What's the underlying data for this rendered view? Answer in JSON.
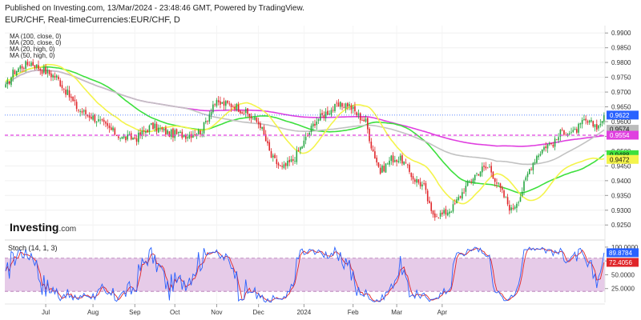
{
  "header": {
    "published": "Published on Investing.com, 13/Mar/2024 - 23:48:46 GMT, Powered by TradingView.",
    "symbol": "EUR/CHF, Real-timeCurrencies:EUR/CHF, D"
  },
  "legend": [
    {
      "label": "MA (100, close, 0)",
      "color": "#c2c2c2"
    },
    {
      "label": "MA (200, close, 0)",
      "color": "#e040e0"
    },
    {
      "label": "MA (20, high, 0)",
      "color": "#f4f44c"
    },
    {
      "label": "MA (50, high, 0)",
      "color": "#3ee03e"
    }
  ],
  "logo": {
    "text": "Investing",
    "suffix": ".com"
  },
  "stoch_label": "Stoch (14, 1, 3)",
  "colors": {
    "up": "#26a641",
    "down": "#e0262a",
    "bg": "#ffffff"
  },
  "chart_data": [
    {
      "type": "candlestick",
      "ylim": [
        0.921,
        0.9925
      ],
      "yticks": [
        "0.9900",
        "0.9850",
        "0.9800",
        "0.9750",
        "0.9700",
        "0.9650",
        "0.9600",
        "0.9550",
        "0.9500",
        "0.9450",
        "0.9400",
        "0.9350",
        "0.9300",
        "0.9250"
      ],
      "xticks": [
        "Jul",
        "Aug",
        "Sep",
        "Oct",
        "Nov",
        "Dec",
        "2024",
        "Feb",
        "Mar",
        "Apr"
      ],
      "price_labels": [
        {
          "value": "0.9622",
          "color": "#2962ff"
        },
        {
          "value": "0.9574",
          "color": "#bbbbbb"
        },
        {
          "value": "0.9554",
          "color": "#e040e0"
        },
        {
          "value": "0.9488",
          "color": "#3ee03e"
        },
        {
          "value": "0.9472",
          "color": "#f4f44c"
        }
      ],
      "close_waypoints": [
        [
          0,
          0.9715
        ],
        [
          4,
          0.9765
        ],
        [
          8,
          0.9785
        ],
        [
          14,
          0.98
        ],
        [
          20,
          0.9775
        ],
        [
          28,
          0.975
        ],
        [
          34,
          0.9695
        ],
        [
          40,
          0.964
        ],
        [
          48,
          0.9615
        ],
        [
          56,
          0.958
        ],
        [
          64,
          0.9545
        ],
        [
          72,
          0.9545
        ],
        [
          80,
          0.9585
        ],
        [
          90,
          0.956
        ],
        [
          100,
          0.9555
        ],
        [
          108,
          0.957
        ],
        [
          114,
          0.966
        ],
        [
          120,
          0.966
        ],
        [
          126,
          0.9655
        ],
        [
          134,
          0.962
        ],
        [
          140,
          0.959
        ],
        [
          146,
          0.948
        ],
        [
          152,
          0.944
        ],
        [
          158,
          0.947
        ],
        [
          164,
          0.953
        ],
        [
          170,
          0.96
        ],
        [
          176,
          0.963
        ],
        [
          182,
          0.965
        ],
        [
          188,
          0.966
        ],
        [
          194,
          0.962
        ],
        [
          198,
          0.96
        ],
        [
          201,
          0.952
        ],
        [
          206,
          0.943
        ],
        [
          212,
          0.9475
        ],
        [
          218,
          0.947
        ],
        [
          224,
          0.941
        ],
        [
          230,
          0.938
        ],
        [
          234,
          0.929
        ],
        [
          240,
          0.9285
        ],
        [
          246,
          0.931
        ],
        [
          252,
          0.937
        ],
        [
          258,
          0.942
        ],
        [
          262,
          0.944
        ],
        [
          266,
          0.9445
        ],
        [
          272,
          0.937
        ],
        [
          278,
          0.93
        ],
        [
          283,
          0.935
        ],
        [
          288,
          0.944
        ],
        [
          292,
          0.9485
        ],
        [
          297,
          0.952
        ],
        [
          302,
          0.953
        ],
        [
          306,
          0.957
        ],
        [
          312,
          0.956
        ],
        [
          318,
          0.96
        ],
        [
          322,
          0.9592
        ],
        [
          326,
          0.9585
        ],
        [
          329,
          0.9622
        ]
      ],
      "series": [
        {
          "name": "MA (100, close, 0)",
          "color": "#c2c2c2",
          "last": 0.9574
        },
        {
          "name": "MA (200, close, 0)",
          "color": "#e040e0",
          "last": 0.9554
        },
        {
          "name": "MA (20, high, 0)",
          "color": "#f4f44c",
          "last": 0.9472
        },
        {
          "name": "MA (50, high, 0)",
          "color": "#3ee03e",
          "last": 0.9488
        }
      ],
      "last_close": 0.9622,
      "dashed_level": 0.9554
    },
    {
      "type": "line",
      "name": "Stoch (14, 1, 3)",
      "ylim": [
        0,
        110
      ],
      "yticks": [
        "100.0000",
        "75.0000",
        "50.0000",
        "25.0000"
      ],
      "band": [
        20,
        80
      ],
      "k_last": 89.8784,
      "d_last": 72.4056,
      "k_color": "#2962ff",
      "d_color": "#e0262a",
      "price_labels": [
        {
          "value": "89.8784",
          "color": "#2962ff"
        },
        {
          "value": "72.4056",
          "color": "#e0262a"
        }
      ]
    }
  ]
}
